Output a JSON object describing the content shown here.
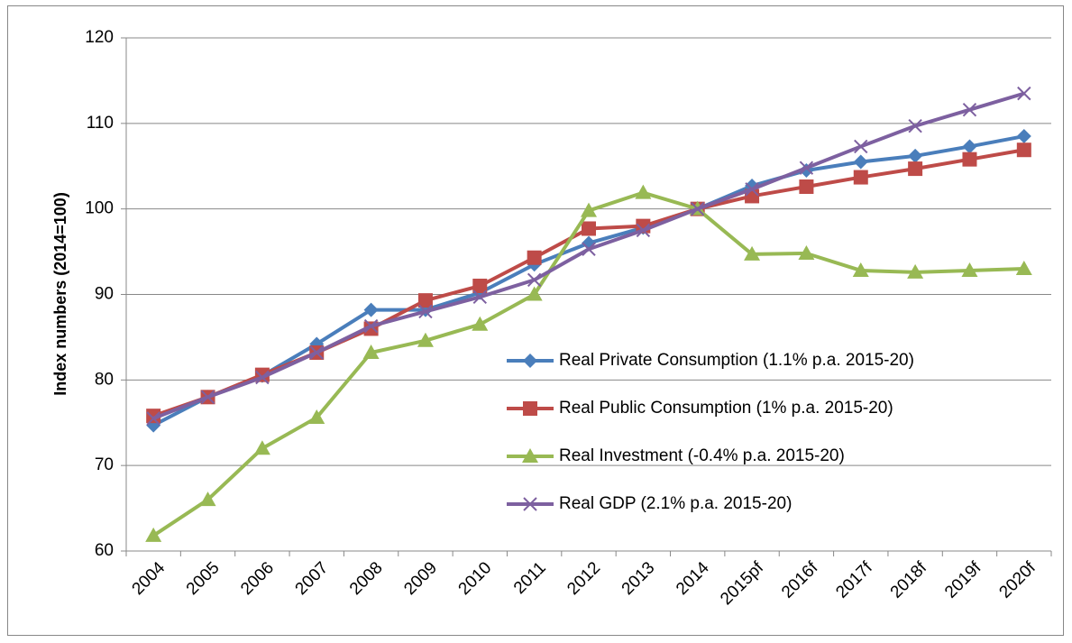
{
  "chart_data": {
    "type": "line",
    "y_label": "Index numbers (2014=100)",
    "categories": [
      "2004",
      "2005",
      "2006",
      "2007",
      "2008",
      "2009",
      "2010",
      "2011",
      "2012",
      "2013",
      "2014",
      "2015pf",
      "2016f",
      "2017f",
      "2018f",
      "2019f",
      "2020f"
    ],
    "series": [
      {
        "name": "Real Private Consumption (1.1% p.a. 2015-20)",
        "color": "#4a7ebb",
        "marker": "diamond",
        "values": [
          74.7,
          78,
          80.5,
          84.2,
          88.2,
          88.2,
          90.2,
          93.5,
          96,
          97.8,
          100,
          102.7,
          104.5,
          105.5,
          106.2,
          107.3,
          108.5
        ]
      },
      {
        "name": "Real Public Consumption (1% p.a. 2015-20)",
        "color": "#be4b48",
        "marker": "square",
        "values": [
          75.8,
          78,
          80.6,
          83.2,
          86,
          89.3,
          91,
          94.3,
          97.7,
          98,
          100,
          101.5,
          102.6,
          103.7,
          104.7,
          105.8,
          106.9
        ]
      },
      {
        "name": "Real Investment (-0.4% p.a. 2015-20)",
        "color": "#98b954",
        "marker": "triangle",
        "values": [
          61.8,
          66,
          72,
          75.6,
          83.2,
          84.6,
          86.5,
          90,
          99.8,
          101.9,
          100,
          94.7,
          94.8,
          92.8,
          92.6,
          92.8,
          93
        ]
      },
      {
        "name": "Real GDP (2.1% p.a. 2015-20)",
        "color": "#7d60a0",
        "marker": "x",
        "values": [
          75.5,
          78,
          80.3,
          83.2,
          86.3,
          88,
          89.7,
          91.7,
          95.3,
          97.5,
          100,
          102.3,
          104.8,
          107.3,
          109.7,
          111.6,
          113.5
        ]
      }
    ],
    "ylim": [
      60,
      120
    ],
    "yticks": [
      60,
      70,
      80,
      90,
      100,
      110,
      120
    ],
    "grid": true
  }
}
